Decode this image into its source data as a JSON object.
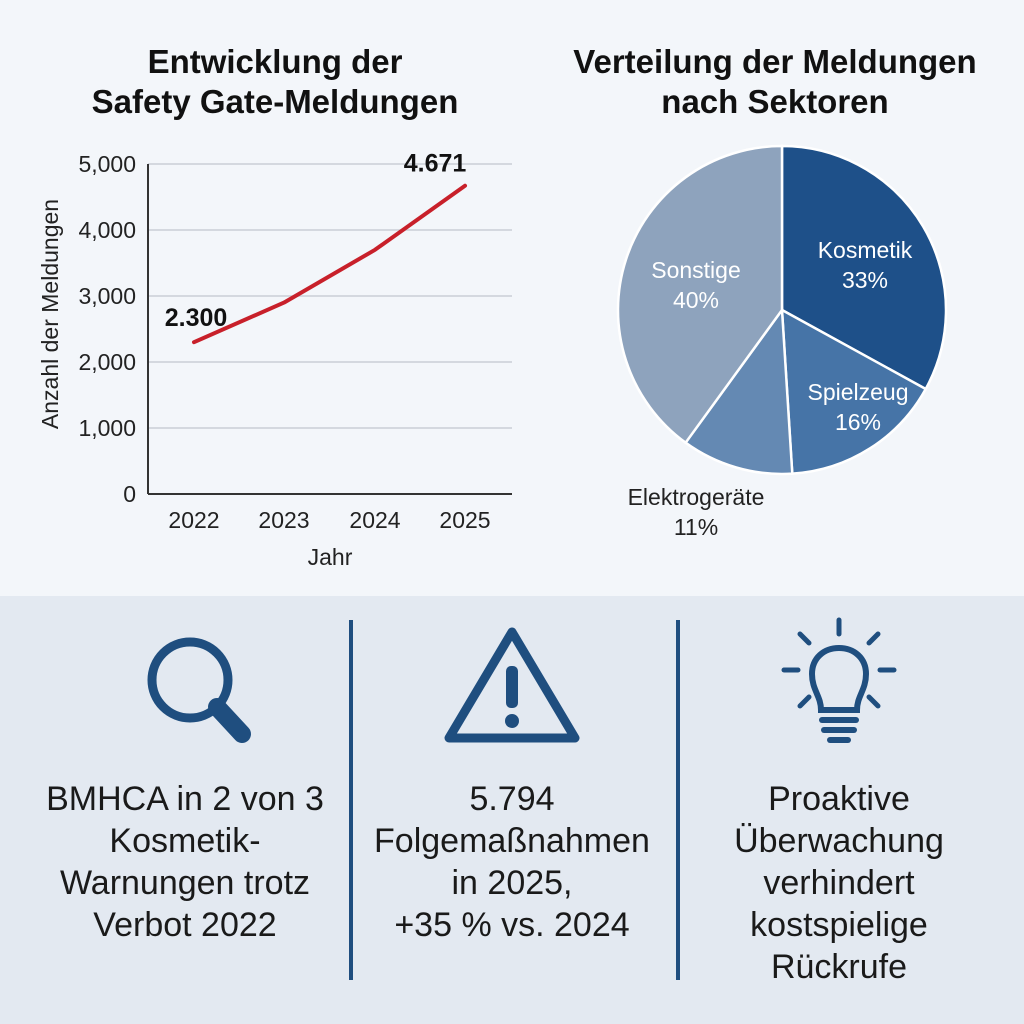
{
  "line_chart": {
    "title_lines": [
      "Entwicklung der",
      "Safety Gate-Meldungen"
    ],
    "color": "#c8202a"
  },
  "pie_chart": {
    "title_lines": [
      "Verteilung der Meldungen",
      "nach Sektoren"
    ]
  },
  "chart_data": [
    {
      "type": "line",
      "title": "Entwicklung der Safety Gate-Meldungen",
      "x": [
        "2022",
        "2023",
        "2024",
        "2025"
      ],
      "xlabel": "Jahr",
      "ylabel": "Anzahl der Meldungen",
      "ylim": [
        0,
        5000
      ],
      "yticks": [
        "0",
        "1,000",
        "2,000",
        "3,000",
        "4,000",
        "5,000"
      ],
      "series": [
        {
          "values": [
            2300,
            2900,
            3700,
            4671
          ]
        }
      ],
      "annotations": [
        {
          "x": "2022",
          "value": 2300,
          "label": "2.300"
        },
        {
          "x": "2025",
          "value": 4671,
          "label": "4.671"
        }
      ],
      "grid": true
    },
    {
      "type": "pie",
      "title": "Verteilung der Meldungen nach Sektoren",
      "slices": [
        {
          "label": "Kosmetik",
          "value": 33,
          "display": "33%",
          "color": "#1e5089"
        },
        {
          "label": "Spielzeug",
          "value": 16,
          "display": "16%",
          "color": "#4674a7"
        },
        {
          "label": "Elektrogeräte",
          "value": 11,
          "display": "11%",
          "color": "#6489b3"
        },
        {
          "label": "Sonstige",
          "value": 40,
          "display": "40%",
          "color": "#8ea3bd"
        }
      ]
    }
  ],
  "panels": [
    {
      "icon": "magnifier-icon",
      "lines": [
        "BMHCA in 2 von 3",
        "Kosmetik-",
        "Warnungen trotz",
        "Verbot 2022"
      ]
    },
    {
      "icon": "warning-triangle-icon",
      "lines": [
        "5.794",
        "Folgemaßnahmen",
        "in 2025,",
        "+35 % vs. 2024"
      ]
    },
    {
      "icon": "lightbulb-icon",
      "lines": [
        "Proaktive",
        "Überwachung",
        "verhindert",
        "kostspielige",
        "Rückrufe"
      ]
    }
  ],
  "accent_color": "#1f4e7f"
}
